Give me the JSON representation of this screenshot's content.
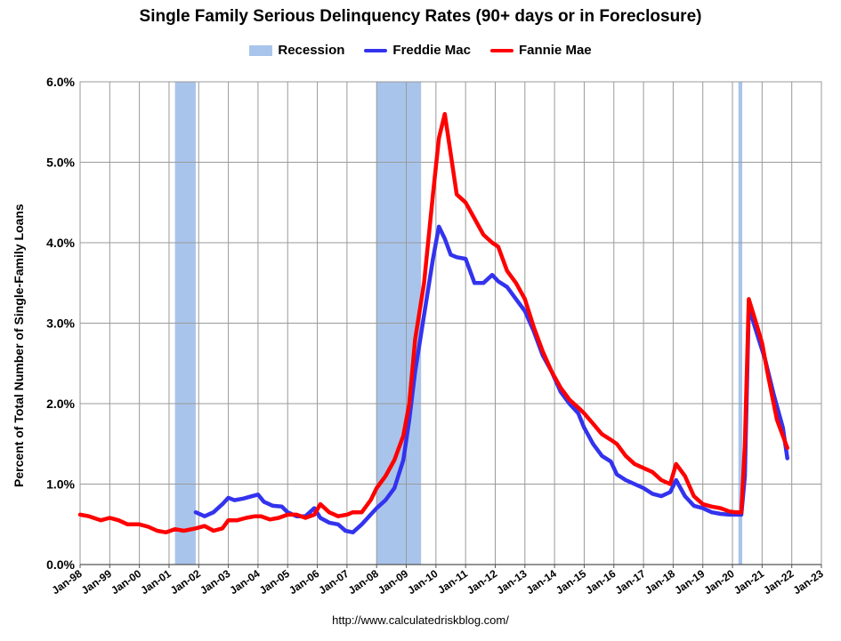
{
  "chart_data": {
    "type": "line",
    "title": "Single Family Serious Delinquency Rates (90+ days or in Foreclosure)",
    "xlabel": "",
    "ylabel": "Percent of Total Number of Single-Family Loans",
    "x_ticks": [
      "Jan-98",
      "Jan-99",
      "Jan-00",
      "Jan-01",
      "Jan-02",
      "Jan-03",
      "Jan-04",
      "Jan-05",
      "Jan-06",
      "Jan-07",
      "Jan-08",
      "Jan-09",
      "Jan-10",
      "Jan-11",
      "Jan-12",
      "Jan-13",
      "Jan-14",
      "Jan-15",
      "Jan-16",
      "Jan-17",
      "Jan-18",
      "Jan-19",
      "Jan-20",
      "Jan-21",
      "Jan-22",
      "Jan-23"
    ],
    "y_ticks": [
      "0.0%",
      "1.0%",
      "2.0%",
      "3.0%",
      "4.0%",
      "5.0%",
      "6.0%"
    ],
    "xlim": [
      1998.0,
      2023.0
    ],
    "ylim": [
      0,
      6
    ],
    "grid": true,
    "legend_position": "top",
    "recessions": [
      [
        2001.2,
        2001.9
      ],
      [
        2008.0,
        2009.5
      ],
      [
        2020.2,
        2020.33
      ]
    ],
    "series": [
      {
        "name": "Freddie Mac",
        "color": "#3333ee",
        "x": [
          2001.9,
          2002.2,
          2002.5,
          2002.8,
          2003.0,
          2003.2,
          2003.5,
          2003.8,
          2004.0,
          2004.2,
          2004.5,
          2004.8,
          2005.0,
          2005.3,
          2005.6,
          2005.9,
          2006.1,
          2006.4,
          2006.7,
          2006.95,
          2007.2,
          2007.5,
          2007.8,
          2008.0,
          2008.3,
          2008.6,
          2008.9,
          2009.1,
          2009.3,
          2009.6,
          2009.9,
          2010.1,
          2010.3,
          2010.5,
          2010.7,
          2011.0,
          2011.3,
          2011.6,
          2011.9,
          2012.1,
          2012.4,
          2012.7,
          2013.0,
          2013.3,
          2013.6,
          2013.9,
          2014.2,
          2014.5,
          2014.8,
          2015.0,
          2015.3,
          2015.6,
          2015.9,
          2016.1,
          2016.4,
          2016.7,
          2017.0,
          2017.3,
          2017.6,
          2017.9,
          2018.1,
          2018.4,
          2018.7,
          2019.0,
          2019.3,
          2019.6,
          2019.9,
          2020.1,
          2020.3,
          2020.42,
          2020.55,
          2020.8,
          2021.1,
          2021.4,
          2021.7,
          2021.85
        ],
        "values": [
          0.65,
          0.6,
          0.65,
          0.75,
          0.83,
          0.8,
          0.82,
          0.85,
          0.87,
          0.78,
          0.73,
          0.72,
          0.65,
          0.6,
          0.6,
          0.7,
          0.58,
          0.52,
          0.5,
          0.42,
          0.4,
          0.5,
          0.62,
          0.7,
          0.8,
          0.95,
          1.3,
          1.8,
          2.4,
          3.1,
          3.8,
          4.2,
          4.05,
          3.85,
          3.82,
          3.8,
          3.5,
          3.5,
          3.6,
          3.52,
          3.45,
          3.3,
          3.15,
          2.9,
          2.6,
          2.4,
          2.15,
          2.0,
          1.88,
          1.7,
          1.5,
          1.35,
          1.28,
          1.12,
          1.05,
          1.0,
          0.95,
          0.88,
          0.85,
          0.9,
          1.05,
          0.85,
          0.73,
          0.7,
          0.65,
          0.63,
          0.62,
          0.62,
          0.62,
          1.1,
          3.2,
          2.9,
          2.55,
          2.1,
          1.7,
          1.32
        ]
      },
      {
        "name": "Fannie Mae",
        "color": "#ff0000",
        "x": [
          1998.0,
          1998.3,
          1998.7,
          1999.0,
          1999.3,
          1999.6,
          2000.0,
          2000.3,
          2000.6,
          2000.9,
          2001.2,
          2001.5,
          2001.9,
          2002.2,
          2002.5,
          2002.8,
          2003.0,
          2003.3,
          2003.6,
          2003.9,
          2004.1,
          2004.4,
          2004.7,
          2005.0,
          2005.3,
          2005.6,
          2005.9,
          2006.1,
          2006.4,
          2006.7,
          2007.0,
          2007.2,
          2007.5,
          2007.8,
          2008.0,
          2008.3,
          2008.6,
          2008.9,
          2009.1,
          2009.3,
          2009.6,
          2009.9,
          2010.1,
          2010.3,
          2010.5,
          2010.7,
          2011.0,
          2011.3,
          2011.6,
          2011.9,
          2012.1,
          2012.4,
          2012.7,
          2013.0,
          2013.3,
          2013.6,
          2013.9,
          2014.2,
          2014.5,
          2014.8,
          2015.0,
          2015.3,
          2015.6,
          2015.9,
          2016.1,
          2016.4,
          2016.7,
          2017.0,
          2017.3,
          2017.6,
          2017.9,
          2018.1,
          2018.4,
          2018.7,
          2019.0,
          2019.3,
          2019.6,
          2019.9,
          2020.1,
          2020.3,
          2020.42,
          2020.55,
          2020.8,
          2021.0,
          2021.2,
          2021.5,
          2021.85
        ],
        "values": [
          0.62,
          0.6,
          0.55,
          0.58,
          0.55,
          0.5,
          0.5,
          0.47,
          0.42,
          0.4,
          0.44,
          0.42,
          0.45,
          0.48,
          0.42,
          0.45,
          0.55,
          0.55,
          0.58,
          0.6,
          0.6,
          0.56,
          0.58,
          0.62,
          0.62,
          0.58,
          0.62,
          0.75,
          0.65,
          0.6,
          0.62,
          0.65,
          0.65,
          0.8,
          0.95,
          1.1,
          1.3,
          1.6,
          2.0,
          2.8,
          3.5,
          4.6,
          5.3,
          5.6,
          5.1,
          4.6,
          4.5,
          4.3,
          4.1,
          4.0,
          3.95,
          3.65,
          3.5,
          3.3,
          2.95,
          2.65,
          2.4,
          2.2,
          2.05,
          1.95,
          1.88,
          1.75,
          1.62,
          1.55,
          1.5,
          1.35,
          1.25,
          1.2,
          1.15,
          1.05,
          1.0,
          1.25,
          1.1,
          0.85,
          0.75,
          0.72,
          0.7,
          0.66,
          0.65,
          0.65,
          1.5,
          3.3,
          3.0,
          2.75,
          2.35,
          1.8,
          1.45
        ]
      }
    ]
  },
  "legend": {
    "recession": "Recession",
    "freddie": "Freddie Mac",
    "fannie": "Fannie Mae",
    "recession_color": "#a9c4eb",
    "freddie_color": "#3333ee",
    "fannie_color": "#ff0000"
  },
  "footer": "http://www.calculatedriskblog.com/"
}
